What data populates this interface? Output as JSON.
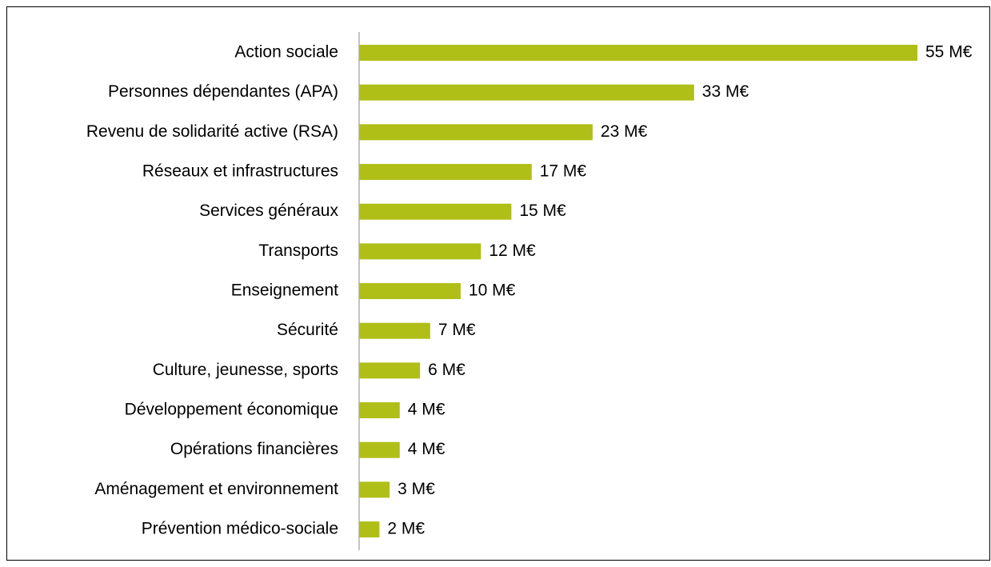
{
  "chart_data": {
    "type": "bar",
    "orientation": "horizontal",
    "categories": [
      "Action sociale",
      "Personnes dépendantes (APA)",
      "Revenu de solidarité active (RSA)",
      "Réseaux et infrastructures",
      "Services généraux",
      "Transports",
      "Enseignement",
      "Sécurité",
      "Culture, jeunesse, sports",
      "Développement économique",
      "Opérations financières",
      "Aménagement et environnement",
      "Prévention médico-sociale"
    ],
    "values": [
      55,
      33,
      23,
      17,
      15,
      12,
      10,
      7,
      6,
      4,
      4,
      3,
      2
    ],
    "value_labels": [
      "55 M€",
      "33 M€",
      "23 M€",
      "17 M€",
      "15 M€",
      "12 M€",
      "10 M€",
      "7 M€",
      "6 M€",
      "4 M€",
      "4 M€",
      "3 M€",
      "2 M€"
    ],
    "color": "#afbf17"
  }
}
